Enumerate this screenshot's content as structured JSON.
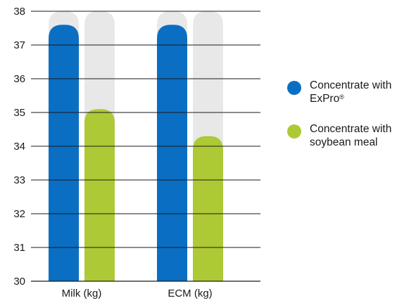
{
  "chart_data": {
    "type": "bar",
    "categories": [
      "Milk (kg)",
      "ECM (kg)"
    ],
    "series": [
      {
        "name": "Concentrate with ExPro®",
        "values": [
          37.6,
          37.6
        ],
        "color": "#0a6fc2"
      },
      {
        "name": "Concentrate with soybean meal",
        "values": [
          35.1,
          34.3
        ],
        "color": "#adc935"
      }
    ],
    "background_bar_color": "#e8e8e8",
    "ylim": [
      30,
      38
    ],
    "yticks": [
      "30",
      "31",
      "32",
      "33",
      "34",
      "35",
      "36",
      "37",
      "38"
    ],
    "grid": true,
    "legend_position": "right"
  },
  "legend": {
    "items": [
      {
        "text": "Concentrate with ExPro",
        "superscript": "®",
        "color": "#0a6fc2"
      },
      {
        "text": "Concentrate with soybean meal",
        "superscript": "",
        "color": "#adc935"
      }
    ]
  }
}
